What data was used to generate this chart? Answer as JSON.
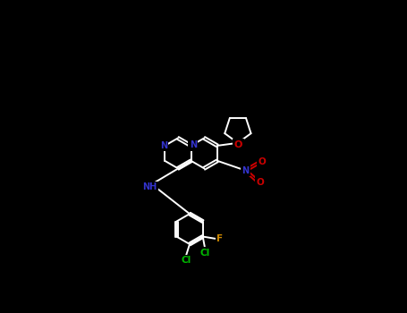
{
  "background": "#000000",
  "bond_color": "#ffffff",
  "bond_lw": 1.4,
  "atom_colors": {
    "N": "#3333cc",
    "O": "#cc0000",
    "F": "#cc8800",
    "Cl": "#00bb00",
    "NH": "#3333cc",
    "NO2_N": "#3333cc",
    "NO2_O": "#cc0000"
  },
  "figsize": [
    4.55,
    3.5
  ],
  "dpi": 100
}
